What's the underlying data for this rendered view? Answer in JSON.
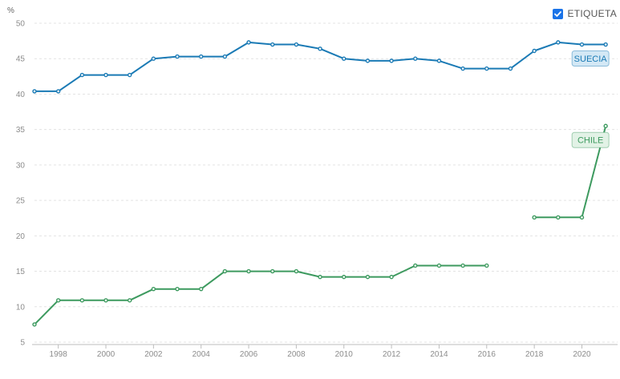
{
  "toggle": {
    "label": "ETIQUETA",
    "checked": true,
    "color": "#1a73e8"
  },
  "chart_data": {
    "type": "line",
    "unit_label": "%",
    "ylim": [
      5,
      50
    ],
    "yticks": [
      5,
      10,
      15,
      20,
      25,
      30,
      35,
      40,
      45,
      50
    ],
    "xlim": [
      1997,
      2021.5
    ],
    "xticks": [
      1998,
      2000,
      2002,
      2004,
      2006,
      2008,
      2010,
      2012,
      2014,
      2016,
      2018,
      2020
    ],
    "grid": true,
    "series": [
      {
        "name": "SUECIA",
        "color": "#1a7ab5",
        "label_bg": "#d3e8f5",
        "points": [
          [
            1997,
            40.4
          ],
          [
            1998,
            40.4
          ],
          [
            1999,
            42.7
          ],
          [
            2000,
            42.7
          ],
          [
            2001,
            42.7
          ],
          [
            2002,
            45.0
          ],
          [
            2003,
            45.3
          ],
          [
            2004,
            45.3
          ],
          [
            2005,
            45.3
          ],
          [
            2006,
            47.3
          ],
          [
            2007,
            47.0
          ],
          [
            2008,
            47.0
          ],
          [
            2009,
            46.4
          ],
          [
            2010,
            45.0
          ],
          [
            2011,
            44.7
          ],
          [
            2012,
            44.7
          ],
          [
            2013,
            45.0
          ],
          [
            2014,
            44.7
          ],
          [
            2015,
            43.6
          ],
          [
            2016,
            43.6
          ],
          [
            2017,
            43.6
          ],
          [
            2018,
            46.1
          ],
          [
            2019,
            47.3
          ],
          [
            2020,
            47.0
          ],
          [
            2021,
            47.0
          ]
        ]
      },
      {
        "name": "CHILE",
        "color": "#3d9a5f",
        "label_bg": "#e2f2e6",
        "points": [
          [
            1997,
            7.5
          ],
          [
            1998,
            10.9
          ],
          [
            1999,
            10.9
          ],
          [
            2000,
            10.9
          ],
          [
            2001,
            10.9
          ],
          [
            2002,
            12.5
          ],
          [
            2003,
            12.5
          ],
          [
            2004,
            12.5
          ],
          [
            2005,
            15.0
          ],
          [
            2006,
            15.0
          ],
          [
            2007,
            15.0
          ],
          [
            2008,
            15.0
          ],
          [
            2009,
            14.2
          ],
          [
            2010,
            14.2
          ],
          [
            2011,
            14.2
          ],
          [
            2012,
            14.2
          ],
          [
            2013,
            15.8
          ],
          [
            2014,
            15.8
          ],
          [
            2015,
            15.8
          ],
          [
            2016,
            15.8
          ],
          null,
          [
            2018,
            22.6
          ],
          [
            2019,
            22.6
          ],
          [
            2020,
            22.6
          ],
          [
            2021,
            35.5
          ]
        ]
      }
    ]
  }
}
